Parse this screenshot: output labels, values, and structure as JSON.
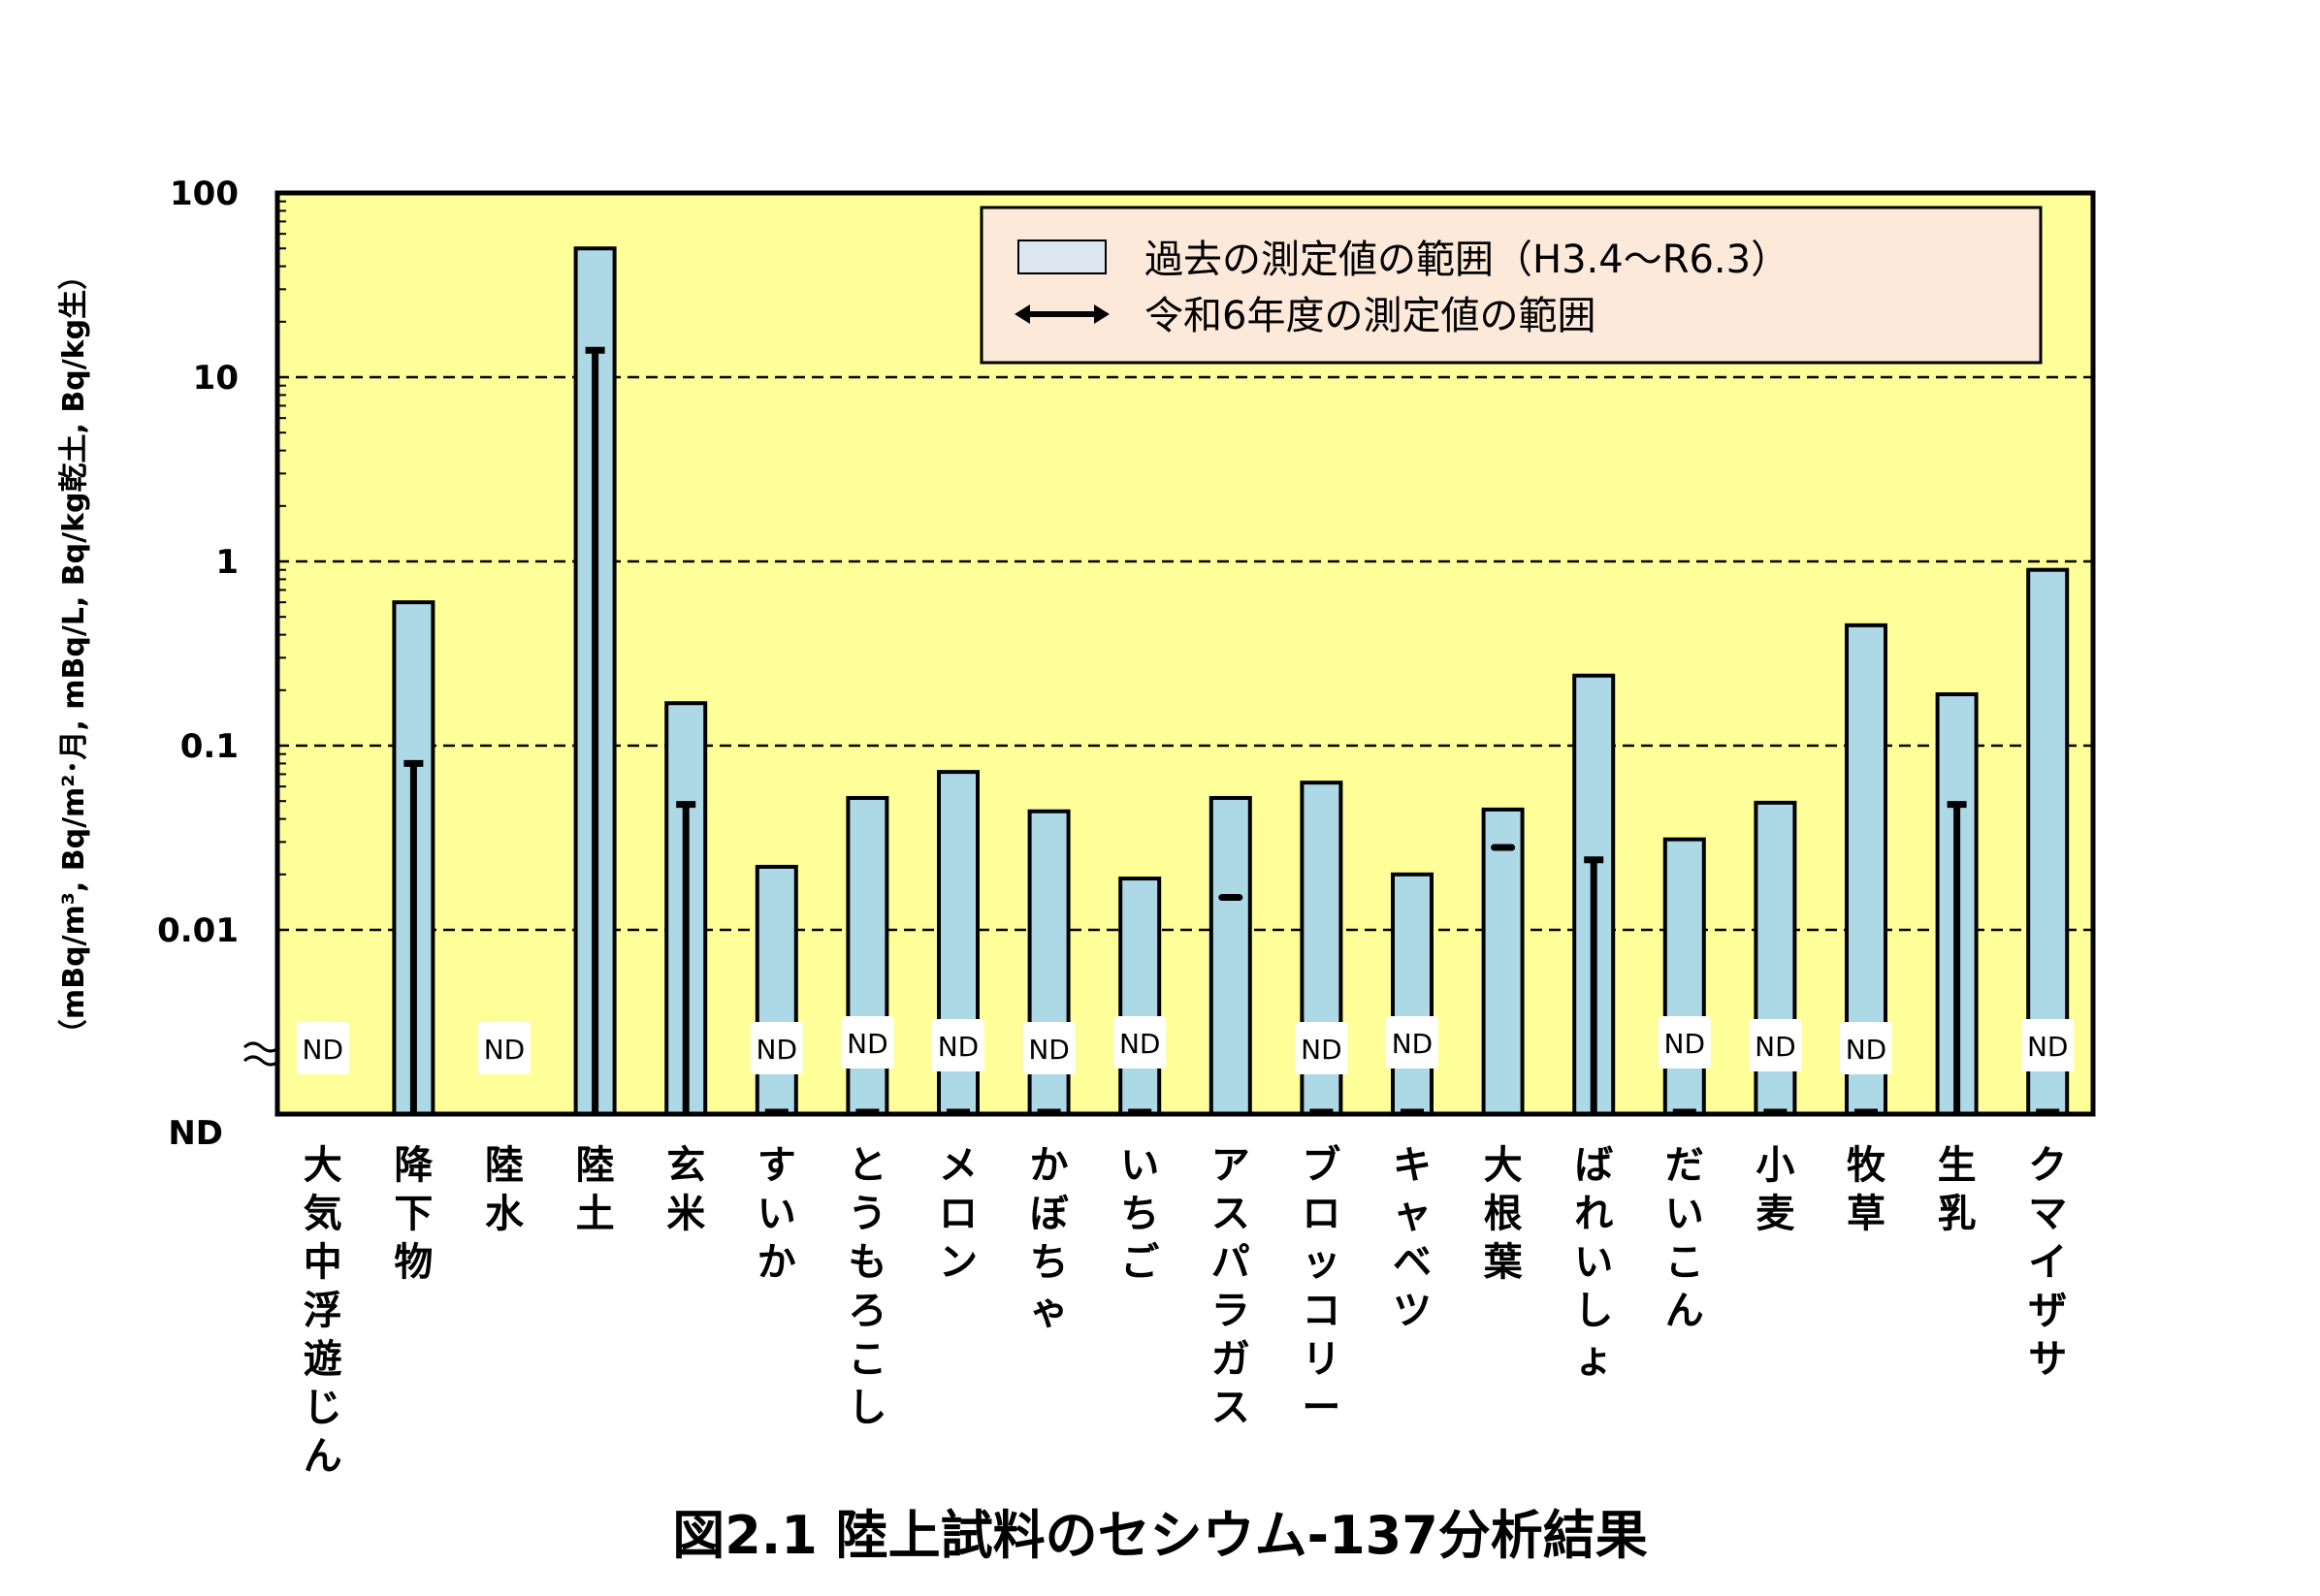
{
  "chart_data": {
    "type": "bar",
    "title": "図2.1 陸上試料のセシウム-137分析結果",
    "ylabel": "（mBq/m³, Bq/m²･月, mBq/L, Bq/kg乾土, Bq/kg生）",
    "yscale": "log",
    "ylim": [
      0.001,
      100
    ],
    "y_ticks": [
      {
        "value": 100,
        "label": "100"
      },
      {
        "value": 10,
        "label": "10"
      },
      {
        "value": 1,
        "label": "1"
      },
      {
        "value": 0.1,
        "label": "0.1"
      },
      {
        "value": 0.01,
        "label": "0.01"
      }
    ],
    "nd_axis_label": "ND",
    "nd_marker": "ND",
    "grid": true,
    "legend": {
      "position": "top-right",
      "items": [
        {
          "label": "過去の測定値の範囲（H3.4～R6.3）",
          "kind": "bar"
        },
        {
          "label": "令和6年度の測定値の範囲",
          "kind": "range-line"
        }
      ]
    },
    "categories": [
      {
        "label": "大気中浮遊じん",
        "past_max": null,
        "current_max": null,
        "nd_label": true
      },
      {
        "label": "降下物",
        "past_max": 0.6,
        "current_max": 0.08,
        "nd_label": false
      },
      {
        "label": "陸水",
        "past_max": null,
        "current_max": null,
        "nd_label": true
      },
      {
        "label": "陸土",
        "past_max": 50,
        "current_max": 14,
        "nd_label": false
      },
      {
        "label": "玄米",
        "past_max": 0.17,
        "current_max": 0.048,
        "nd_label": false
      },
      {
        "label": "すいか",
        "past_max": 0.022,
        "current_max": null,
        "nd_label": true
      },
      {
        "label": "とうもろこし",
        "past_max": 0.052,
        "current_max": null,
        "nd_label": true
      },
      {
        "label": "メロン",
        "past_max": 0.072,
        "current_max": null,
        "nd_label": true
      },
      {
        "label": "かぼちゃ",
        "past_max": 0.044,
        "current_max": null,
        "nd_label": true
      },
      {
        "label": "いちご",
        "past_max": 0.019,
        "current_max": null,
        "nd_label": true
      },
      {
        "label": "アスパラガス",
        "past_max": 0.052,
        "current_max": 0.015,
        "current_min": 0.015,
        "nd_label": false
      },
      {
        "label": "ブロッコリー",
        "past_max": 0.063,
        "current_max": null,
        "nd_label": true
      },
      {
        "label": "キャベツ",
        "past_max": 0.02,
        "current_max": null,
        "nd_label": true
      },
      {
        "label": "大根葉",
        "past_max": 0.045,
        "current_max": 0.028,
        "current_min": 0.028,
        "nd_label": false
      },
      {
        "label": "ばれいしょ",
        "past_max": 0.24,
        "current_max": 0.024,
        "nd_label": false
      },
      {
        "label": "だいこん",
        "past_max": 0.031,
        "current_max": null,
        "nd_label": true
      },
      {
        "label": "小麦",
        "past_max": 0.049,
        "current_max": null,
        "nd_label": true
      },
      {
        "label": "牧草",
        "past_max": 0.45,
        "current_max": null,
        "nd_label": true
      },
      {
        "label": "生乳",
        "past_max": 0.19,
        "current_max": 0.048,
        "nd_label": false
      },
      {
        "label": "クマイザサ",
        "past_max": 0.9,
        "current_max": null,
        "nd_label": true
      }
    ]
  },
  "colors": {
    "plot_background": "#ffff99",
    "bar_fill": "#add8e6",
    "legend_background": "#fde9d9",
    "legend_bar_fill": "#dce6f1",
    "line": "#000000"
  }
}
